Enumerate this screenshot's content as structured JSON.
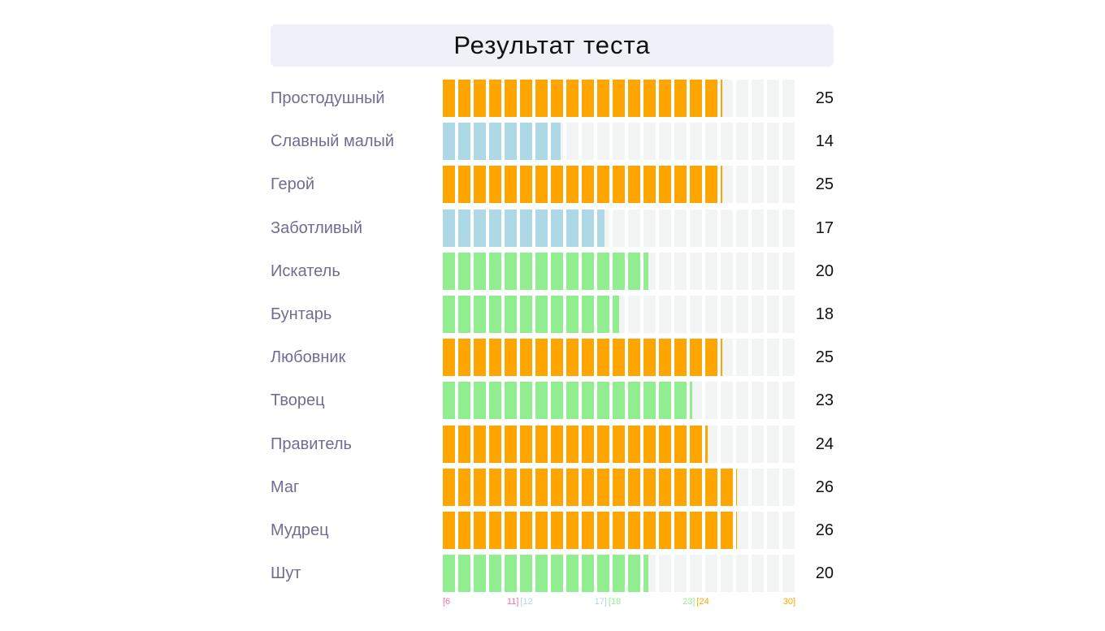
{
  "chart_data": {
    "type": "bar",
    "title": "Результат теста",
    "xlim": [
      6,
      30
    ],
    "categories": [
      "Простодушный",
      "Славный малый",
      "Герой",
      "Заботливый",
      "Искатель",
      "Бунтарь",
      "Любовник",
      "Творец",
      "Правитель",
      "Маг",
      "Мудрец",
      "Шут"
    ],
    "values": [
      25,
      14,
      25,
      17,
      20,
      18,
      25,
      23,
      24,
      26,
      26,
      20
    ],
    "ranges": [
      {
        "min": 6,
        "max": 11,
        "start_label": "[6",
        "end_label": "11]",
        "color": "#ff6f9c"
      },
      {
        "min": 12,
        "max": 17,
        "start_label": "[12",
        "end_label": "17]",
        "color": "#add8e6"
      },
      {
        "min": 18,
        "max": 23,
        "start_label": "[18",
        "end_label": "23]",
        "color": "#90ee90"
      },
      {
        "min": 24,
        "max": 30,
        "start_label": "[24",
        "end_label": "30]",
        "color": "#ffa500"
      }
    ]
  }
}
